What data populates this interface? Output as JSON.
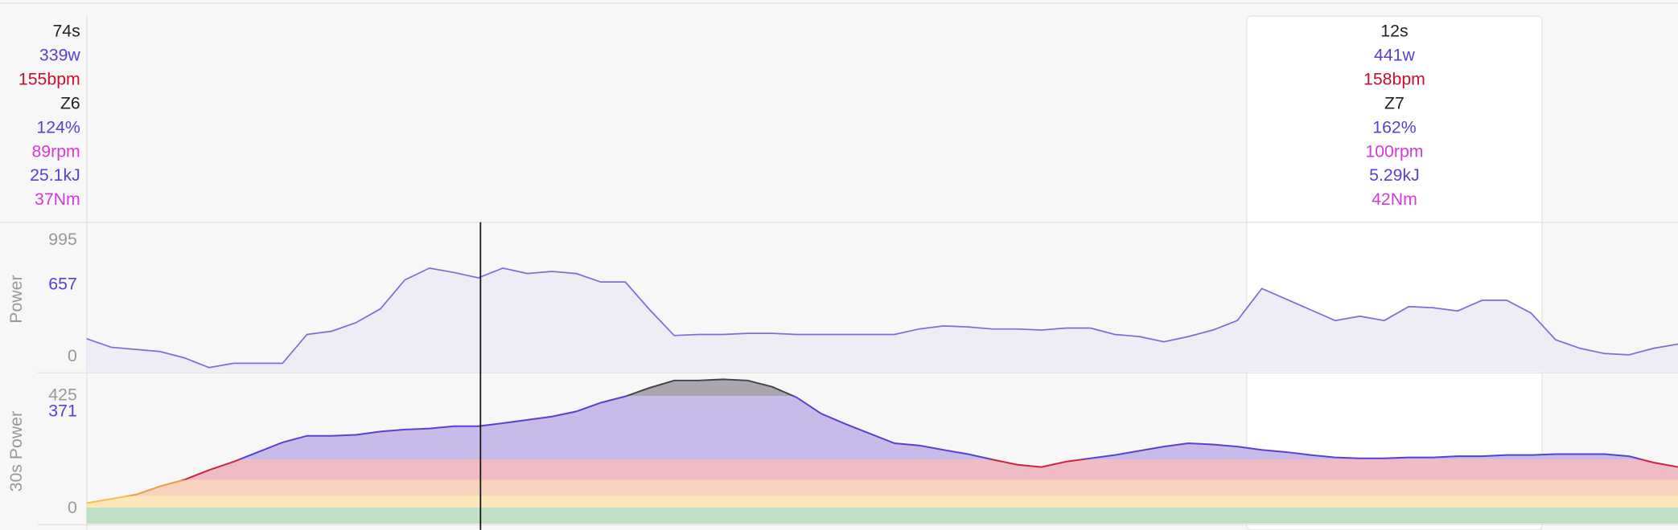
{
  "cursor_panel": {
    "rows": [
      "74s",
      "339w",
      "155bpm",
      "Z6",
      "124%",
      "89rpm",
      "25.1kJ",
      "37Nm"
    ],
    "colors": [
      "#222222",
      "#5b3fd0",
      "#c8102e",
      "#222222",
      "#5b3fd0",
      "#d63ad6",
      "#5b3fd0",
      "#d63ad6"
    ]
  },
  "selection_panel": {
    "rows": [
      "12s",
      "441w",
      "158bpm",
      "Z7",
      "162%",
      "100rpm",
      "5.29kJ",
      "42Nm"
    ],
    "colors": [
      "#222222",
      "#5b3fd0",
      "#c8102e",
      "#222222",
      "#5b3fd0",
      "#d63ad6",
      "#5b3fd0",
      "#d63ad6"
    ]
  },
  "chart_data": [
    {
      "type": "line",
      "ylabel": "Power",
      "ylim": [
        0,
        1100
      ],
      "yticks": [
        0,
        657,
        995
      ],
      "ytick_colors": [
        "#999999",
        "#5b3fd0",
        "#999999"
      ],
      "grid": false,
      "color": "#7b6ed6",
      "fill": "#eeedf5",
      "values": [
        251,
        186,
        170,
        154,
        105,
        32,
        65,
        65,
        65,
        283,
        307,
        372,
        477,
        696,
        785,
        752,
        712,
        785,
        744,
        760,
        744,
        680,
        680,
        469,
        275,
        283,
        283,
        291,
        291,
        283,
        283,
        283,
        283,
        283,
        324,
        348,
        340,
        324,
        324,
        316,
        332,
        332,
        283,
        267,
        227,
        267,
        316,
        388,
        631,
        550,
        469,
        388,
        421,
        388,
        494,
        485,
        461,
        542,
        542,
        445,
        243,
        178,
        138,
        129,
        178,
        210
      ]
    },
    {
      "type": "zone-area",
      "ylabel": "30s Power",
      "ylim": [
        0,
        480
      ],
      "yticks": [
        0,
        371,
        425
      ],
      "ytick_colors": [
        "#999999",
        "#5b3fd0",
        "#999999"
      ],
      "grid": false,
      "cap": {
        "above": 425,
        "fill": "#a9a6b0",
        "color": "#444444"
      },
      "zones": [
        {
          "upto": 53,
          "fill": "#bfe0c4",
          "color": "#7bbf85"
        },
        {
          "upto": 92,
          "fill": "#fbe7b8",
          "color": "#f2c24f"
        },
        {
          "upto": 146,
          "fill": "#f7d3bb",
          "color": "#ee9a45"
        },
        {
          "upto": 213,
          "fill": "#efbcc6",
          "color": "#d0233f"
        },
        {
          "upto": 480,
          "fill": "#c8bbe9",
          "color": "#5b3fd0"
        }
      ],
      "values": [
        68,
        82,
        96,
        124,
        146,
        178,
        206,
        238,
        270,
        292,
        292,
        295,
        306,
        313,
        316,
        324,
        324,
        334,
        345,
        356,
        373,
        402,
        423,
        452,
        476,
        476,
        480,
        476,
        455,
        420,
        366,
        331,
        299,
        267,
        260,
        245,
        231,
        213,
        196,
        188,
        206,
        217,
        228,
        242,
        256,
        267,
        263,
        256,
        245,
        238,
        228,
        220,
        217,
        217,
        220,
        220,
        224,
        224,
        228,
        228,
        231,
        231,
        231,
        224,
        203,
        188
      ]
    }
  ]
}
